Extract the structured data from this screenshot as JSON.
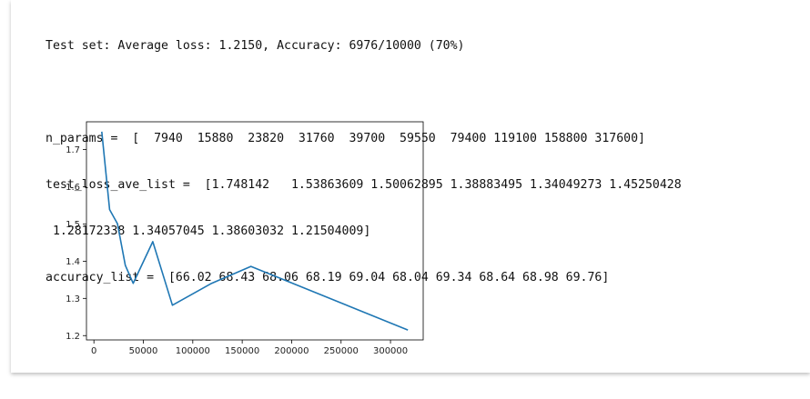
{
  "output": {
    "test_result_line": "Test set: Average loss: 1.2150, Accuracy: 6976/10000 (70%)",
    "n_params_line": "n_params =  [  7940  15880  23820  31760  39700  59550  79400 119100 158800 317600]",
    "test_loss_line_1": "test_loss_ave_list =  [1.748142   1.53863609 1.50062895 1.38883495 1.34049273 1.45250428",
    "test_loss_line_2": " 1.28172338 1.34057045 1.38603032 1.21504009]",
    "accuracy_line": "accuracy_list =  [66.02 68.43 68.06 68.19 69.04 68.04 69.34 68.64 68.98 69.76]"
  },
  "chart_data": {
    "type": "line",
    "title": "",
    "xlabel": "",
    "ylabel": "",
    "x": [
      7940,
      15880,
      23820,
      31760,
      39700,
      59550,
      79400,
      119100,
      158800,
      317600
    ],
    "series": [
      {
        "values": [
          1.748142,
          1.53863609,
          1.50062895,
          1.38883495,
          1.34049273,
          1.45250428,
          1.28172338,
          1.34057045,
          1.38603032,
          1.21504009
        ],
        "color": "#1f77b4"
      }
    ],
    "xlim": [
      -7543,
      333083
    ],
    "ylim": [
      1.1884,
      1.7747
    ],
    "xticks": [
      0,
      50000,
      100000,
      150000,
      200000,
      250000,
      300000
    ],
    "xtick_labels": [
      "0",
      "50000",
      "100000",
      "150000",
      "200000",
      "250000",
      "300000"
    ],
    "yticks": [
      1.2,
      1.3,
      1.4,
      1.5,
      1.6,
      1.7
    ],
    "ytick_labels": [
      "1.2",
      "1.3",
      "1.4",
      "1.5",
      "1.6",
      "1.7"
    ],
    "grid": false,
    "legend": "none"
  }
}
